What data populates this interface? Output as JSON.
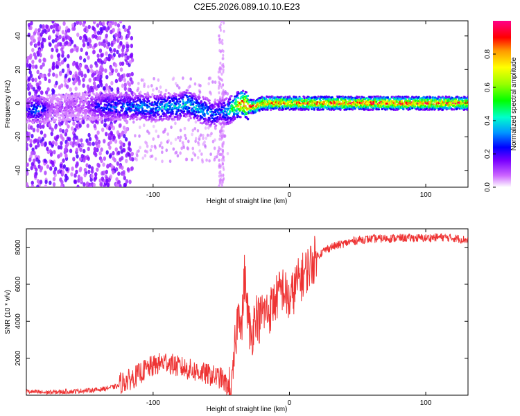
{
  "chart_data": [
    {
      "type": "heatmap",
      "title": "C2E5.2026.089.10.10.E23",
      "xlabel": "Height of straight line (km)",
      "ylabel": "Frequency (Hz)",
      "xlim": [
        -193,
        131
      ],
      "ylim": [
        -50,
        49
      ],
      "x_ticks": [
        -100,
        0,
        100
      ],
      "x_tick_labels": [
        "-100",
        "0",
        "100"
      ],
      "y_ticks": [
        -40,
        -20,
        0,
        20,
        40
      ],
      "y_tick_labels": [
        "-40",
        "-20",
        "0",
        "20",
        "40"
      ],
      "trace": {
        "x": [
          -193,
          -185,
          -175,
          -160,
          -150,
          -140,
          -130,
          -120,
          -110,
          -100,
          -90,
          -80,
          -75,
          -70,
          -65,
          -60,
          -55,
          -50,
          -45,
          -40,
          -35,
          -30,
          -25,
          -20,
          -10,
          0,
          10,
          30,
          60,
          100,
          131
        ],
        "center_hz": [
          -4,
          -4,
          -3,
          -2,
          -2,
          -2,
          -2,
          -2,
          -2,
          -3,
          -2,
          -2,
          0,
          -2,
          -4,
          -5,
          -7,
          -5,
          -5,
          -2,
          0,
          -2,
          -2,
          0,
          0,
          0,
          0,
          0,
          0,
          0,
          0
        ],
        "amplitude": [
          0.2,
          0.35,
          0.1,
          0.1,
          0.1,
          0.25,
          0.3,
          0.3,
          0.35,
          0.35,
          0.4,
          0.4,
          0.45,
          0.4,
          0.4,
          0.35,
          0.3,
          0.3,
          0.45,
          0.55,
          0.9,
          0.95,
          0.9,
          0.85,
          0.85,
          0.8,
          0.85,
          0.9,
          0.9,
          0.9,
          0.85
        ]
      },
      "colorbar": {
        "label": "Normalized spectral amplitude",
        "range": [
          0,
          1
        ],
        "ticks": [
          0.0,
          0.2,
          0.4,
          0.6,
          0.8
        ],
        "tick_labels": [
          "0.0",
          "0.2",
          "0.4",
          "0.6",
          "0.8"
        ]
      }
    },
    {
      "type": "line",
      "xlabel": "Height of straight line (km)",
      "ylabel": "SNR (10 * v/v)",
      "xlim": [
        -193,
        131
      ],
      "ylim": [
        0,
        9000
      ],
      "x_ticks": [
        -100,
        0,
        100
      ],
      "x_tick_labels": [
        "-100",
        "0",
        "100"
      ],
      "y_ticks": [
        2000,
        4000,
        6000,
        8000
      ],
      "y_tick_labels": [
        "2000",
        "4000",
        "6000",
        "8000"
      ],
      "color": "#ee3333",
      "series": [
        {
          "name": "SNR",
          "x": [
            -193,
            -180,
            -160,
            -140,
            -125,
            -115,
            -105,
            -95,
            -90,
            -85,
            -80,
            -70,
            -60,
            -50,
            -45,
            -42,
            -40,
            -37,
            -35,
            -33,
            -30,
            -28,
            -25,
            -22,
            -20,
            -15,
            -10,
            -5,
            0,
            5,
            10,
            15,
            20,
            25,
            30,
            40,
            50,
            60,
            80,
            100,
            110,
            120,
            131
          ],
          "y": [
            200,
            150,
            200,
            300,
            500,
            800,
            1300,
            1600,
            1700,
            1500,
            1400,
            1200,
            1000,
            800,
            300,
            300,
            2500,
            5000,
            3500,
            6500,
            4000,
            3000,
            4500,
            4000,
            4500,
            4500,
            5200,
            5800,
            5000,
            6000,
            6500,
            7000,
            7500,
            7800,
            8000,
            8200,
            8400,
            8450,
            8500,
            8500,
            8550,
            8500,
            8400
          ]
        }
      ]
    }
  ],
  "colors": {
    "snr_line": "#ee3333",
    "axis": "#000000",
    "background": "#ffffff"
  }
}
